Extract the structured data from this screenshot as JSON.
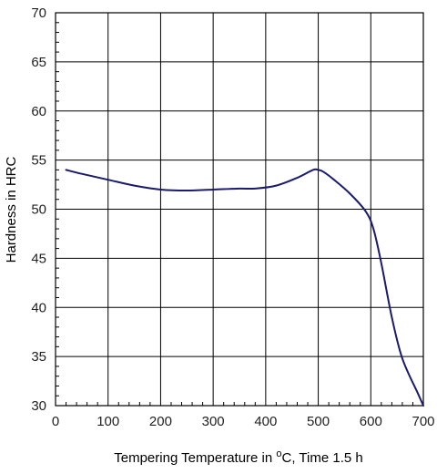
{
  "chart_data": {
    "type": "line",
    "title": "",
    "xlabel": {
      "before": "Tempering Temperature in ",
      "sup": "o",
      "after": "C, Time 1.5 h"
    },
    "ylabel": "Hardness in HRC",
    "xlim": [
      0,
      700
    ],
    "ylim": [
      30,
      70
    ],
    "xticks": [
      0,
      100,
      200,
      300,
      400,
      500,
      600,
      700
    ],
    "yticks": [
      30,
      35,
      40,
      45,
      50,
      55,
      60,
      65,
      70
    ],
    "grid": true,
    "line_color": "#1a1a6e",
    "series": [
      {
        "x": [
          20,
          50,
          100,
          150,
          200,
          250,
          300,
          350,
          380,
          420,
          460,
          490,
          500,
          510,
          530,
          560,
          590,
          605,
          620,
          640,
          660,
          690,
          700
        ],
        "y": [
          54.0,
          53.6,
          53.0,
          52.4,
          52.0,
          51.9,
          52.0,
          52.1,
          52.1,
          52.4,
          53.2,
          54.0,
          54.0,
          53.8,
          53.0,
          51.6,
          49.8,
          48.0,
          44.5,
          39.0,
          34.8,
          31.2,
          30.0
        ]
      }
    ]
  }
}
